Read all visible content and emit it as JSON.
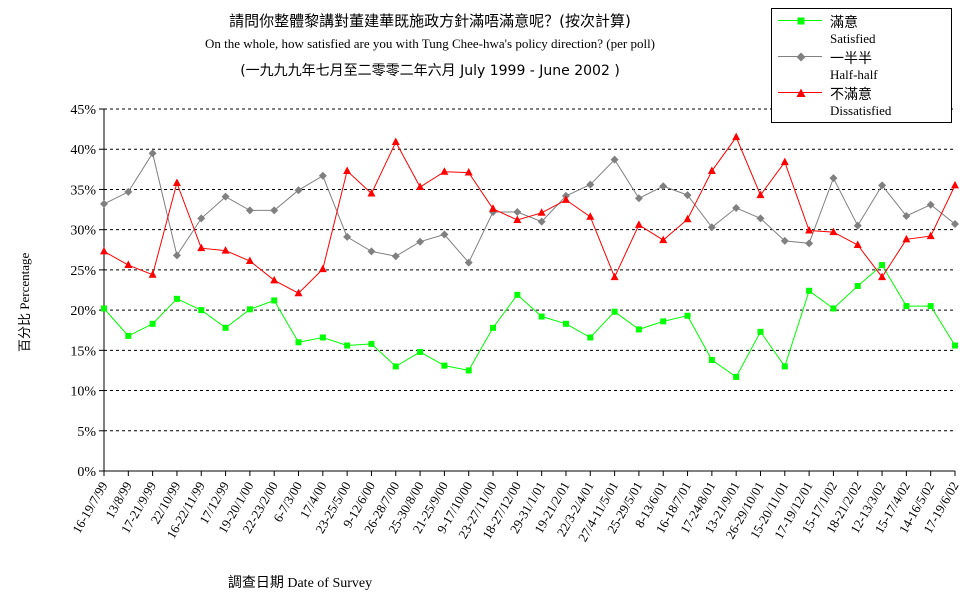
{
  "title_zh": "請問你整體黎講對董建華既施政方針滿唔滿意呢？(按次計算)",
  "title_en": "On the whole, how satisfied are you with Tung Chee-hwa's policy direction? (per poll)",
  "period": "(一九九九年七月至二零零二年六月 July 1999 - June 2002 )",
  "legend": [
    {
      "zh": "滿意",
      "en": "Satisfied",
      "color": "#00ff00",
      "marker": "square"
    },
    {
      "zh": "一半半",
      "en": "Half-half",
      "color": "#808080",
      "marker": "diamond"
    },
    {
      "zh": "不滿意",
      "en": "Dissatisfied",
      "color": "#ff0000",
      "marker": "triangle"
    }
  ],
  "chart_data": {
    "type": "line",
    "ylabel": "百分比 Percentage",
    "xlabel": "調查日期 Date of Survey",
    "ylim": [
      0,
      45
    ],
    "yticks": [
      "0%",
      "5%",
      "10%",
      "15%",
      "20%",
      "25%",
      "30%",
      "35%",
      "40%",
      "45%"
    ],
    "grid": "horizontal dashed",
    "legend_position": "top-right",
    "categories": [
      "16-19/7/99",
      "13/8/99",
      "17-21/9/99",
      "22/10/99",
      "16-22/11/99",
      "17/12/99",
      "19-20/1/00",
      "22-23/2/00",
      "6-7/3/00",
      "17/4/00",
      "23-25/5/00",
      "9-12/6/00",
      "26-28/7/00",
      "25-30/8/00",
      "21-25/9/00",
      "9-17/10/00",
      "23-27/11/00",
      "18-27/12/00",
      "29-31/1/01",
      "19-21/2/01",
      "22/3-2/4/01",
      "27/4-11/5/01",
      "25-29/5/01",
      "8-13/6/01",
      "16-18/7/01",
      "17-24/8/01",
      "13-21/9/01",
      "26-29/10/01",
      "15-20/11/01",
      "17-19/12/01",
      "15-17/1/02",
      "18-21/2/02",
      "12-13/3/02",
      "15-17/4/02",
      "14-16/5/02",
      "17-19/6/02"
    ],
    "series": [
      {
        "name": "滿意 Satisfied",
        "color": "#00ff00",
        "marker": "square",
        "values": [
          20.2,
          16.8,
          18.3,
          21.4,
          20.0,
          17.8,
          20.1,
          21.2,
          16.0,
          16.6,
          15.6,
          15.8,
          13.0,
          14.8,
          13.1,
          12.5,
          17.8,
          21.9,
          19.2,
          18.3,
          16.6,
          19.8,
          17.6,
          18.6,
          19.3,
          13.8,
          11.7,
          17.3,
          13.0,
          22.4,
          20.2,
          23.0,
          25.6,
          20.5,
          20.5,
          15.6
        ]
      },
      {
        "name": "一半半 Half-half",
        "color": "#808080",
        "marker": "diamond",
        "values": [
          33.2,
          34.7,
          39.5,
          26.8,
          31.4,
          34.1,
          32.4,
          32.4,
          34.9,
          36.7,
          29.1,
          27.3,
          26.7,
          28.5,
          29.4,
          25.9,
          32.2,
          32.2,
          31.0,
          34.2,
          35.6,
          38.7,
          33.9,
          35.4,
          34.3,
          30.3,
          32.7,
          31.4,
          28.6,
          28.3,
          36.4,
          30.5,
          35.5,
          31.7,
          33.1,
          30.7
        ]
      },
      {
        "name": "不滿意 Dissatisfied",
        "color": "#ff0000",
        "marker": "triangle",
        "values": [
          27.3,
          25.6,
          24.4,
          35.8,
          27.7,
          27.4,
          26.1,
          23.7,
          22.1,
          25.1,
          37.3,
          34.5,
          40.9,
          35.3,
          37.2,
          37.1,
          32.6,
          31.2,
          32.1,
          33.7,
          31.6,
          24.1,
          30.6,
          28.7,
          31.3,
          37.3,
          41.5,
          34.3,
          38.4,
          29.9,
          29.7,
          28.1,
          24.1,
          28.8,
          29.2,
          35.5
        ]
      }
    ]
  }
}
